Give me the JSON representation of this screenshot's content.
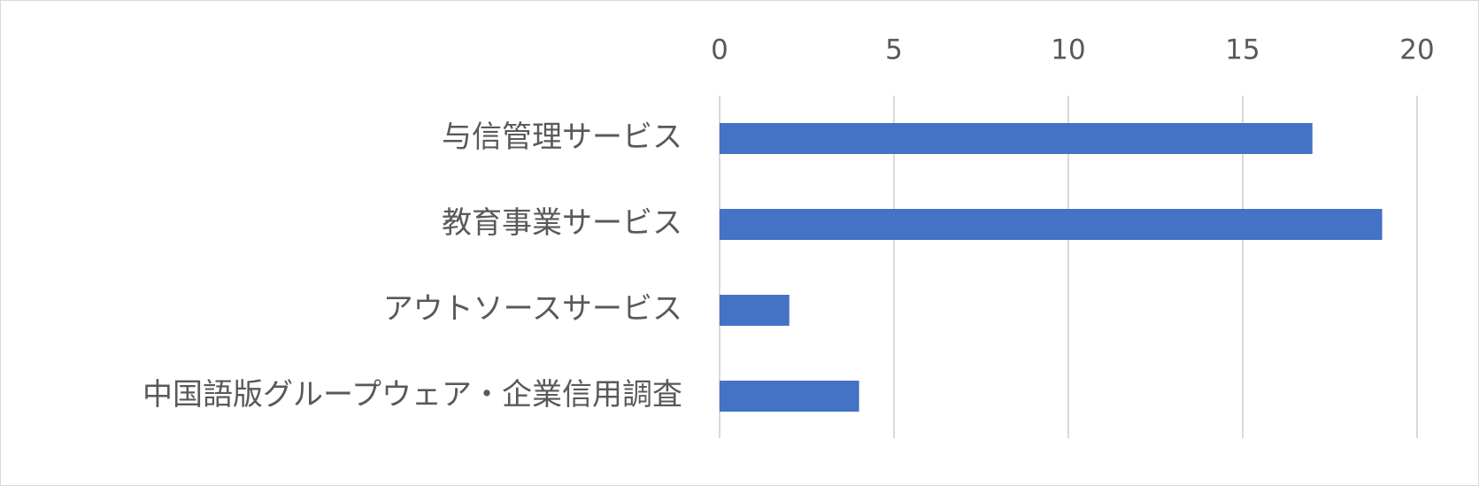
{
  "chart_data": {
    "type": "bar",
    "orientation": "horizontal",
    "categories": [
      "与信管理サービス",
      "教育事業サービス",
      "アウトソースサービス",
      "中国語版グループウェア・企業信用調査"
    ],
    "values": [
      17,
      19,
      2,
      4
    ],
    "xlim": [
      0,
      20
    ],
    "x_ticks": [
      "0",
      "5",
      "10",
      "15",
      "20"
    ],
    "tick_values": [
      0,
      5,
      10,
      15,
      20
    ],
    "x_axis_position": "top",
    "grid": true,
    "legend": "none",
    "title": "",
    "xlabel": "",
    "ylabel": "",
    "colors": {
      "bar": "#4472C4",
      "grid": "#d9d9d9",
      "text": "#595959",
      "border": "#d9d9d9"
    }
  }
}
